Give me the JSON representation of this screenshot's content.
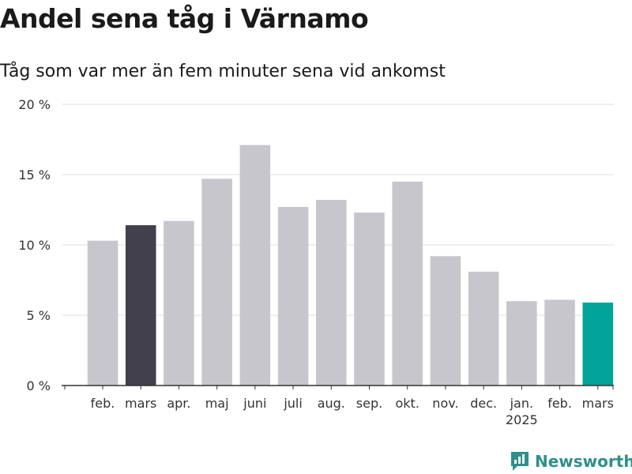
{
  "chart_data": {
    "type": "bar",
    "title": "Andel sena tåg i Värnamo",
    "subtitle": "Tåg som var mer än fem minuter sena vid ankomst",
    "categories": [
      "feb.",
      "mars",
      "apr.",
      "maj",
      "juni",
      "juli",
      "aug.",
      "sep.",
      "okt.",
      "nov.",
      "dec.",
      "jan.",
      "feb.",
      "mars"
    ],
    "year_label": "2025",
    "values": [
      10.3,
      11.4,
      11.7,
      14.7,
      17.1,
      12.7,
      13.2,
      12.3,
      14.5,
      9.2,
      8.1,
      6.0,
      6.1,
      5.9
    ],
    "colors": [
      "#c7c6cc",
      "#42404d",
      "#c7c6cc",
      "#c7c6cc",
      "#c7c6cc",
      "#c7c6cc",
      "#c7c6cc",
      "#c7c6cc",
      "#c7c6cc",
      "#c7c6cc",
      "#c7c6cc",
      "#c7c6cc",
      "#c7c6cc",
      "#00a498"
    ],
    "yticks": [
      "0 %",
      "5 %",
      "10 %",
      "15 %",
      "20 %"
    ],
    "ylim": [
      0,
      20
    ],
    "grid": true
  },
  "logo": {
    "text": "Newsworthy",
    "color": "#2f8f8a"
  }
}
